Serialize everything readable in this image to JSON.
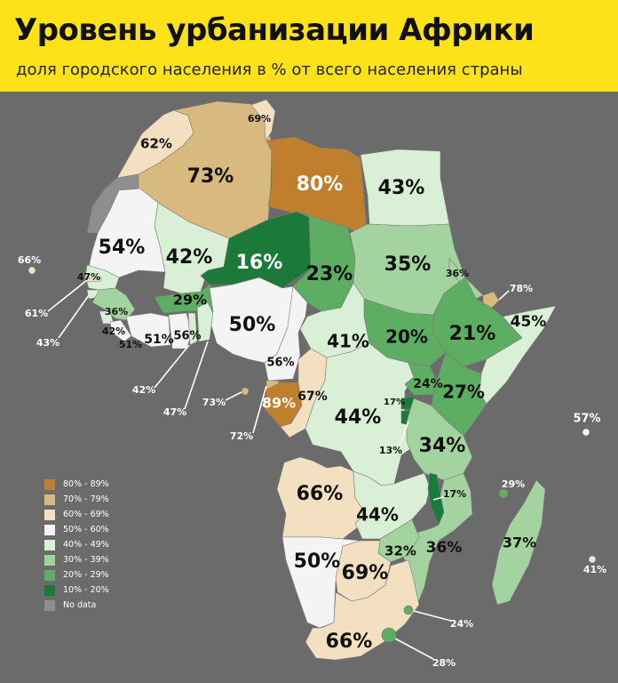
{
  "title": "Уровень урбанизации Африки",
  "subtitle": "доля городского населения в % от всего населения страны",
  "colors": {
    "background": "#6b6b6b",
    "header": "#fde21a",
    "80-89": "#c07f2d",
    "70-79": "#d8b97f",
    "60-69": "#f2e0c0",
    "50-60": "#f4f4f4",
    "40-49": "#d9efd6",
    "30-39": "#a3d39e",
    "20-29": "#5dad63",
    "10-20": "#1b7a3a",
    "no_data": "#8e8e8e"
  },
  "legend": [
    {
      "label": "80% - 89%",
      "color_key": "80-89"
    },
    {
      "label": "70% - 79%",
      "color_key": "70-79"
    },
    {
      "label": "60% - 69%",
      "color_key": "60-69"
    },
    {
      "label": "50% - 60%",
      "color_key": "50-60"
    },
    {
      "label": "40% - 49%",
      "color_key": "40-49"
    },
    {
      "label": "30% - 39%",
      "color_key": "30-39"
    },
    {
      "label": "20% - 29%",
      "color_key": "20-29"
    },
    {
      "label": "10% - 20%",
      "color_key": "10-20"
    },
    {
      "label": "No data",
      "color_key": "no_data"
    }
  ],
  "regions": [
    {
      "id": "morocco",
      "label": "62%",
      "color_key": "60-69"
    },
    {
      "id": "western-sahara",
      "label": "",
      "color_key": "no_data"
    },
    {
      "id": "algeria",
      "label": "73%",
      "color_key": "70-79"
    },
    {
      "id": "tunisia",
      "label": "69%",
      "color_key": "60-69"
    },
    {
      "id": "libya",
      "label": "80%",
      "color_key": "80-89"
    },
    {
      "id": "egypt",
      "label": "43%",
      "color_key": "40-49"
    },
    {
      "id": "mauritania",
      "label": "54%",
      "color_key": "50-60"
    },
    {
      "id": "mali",
      "label": "42%",
      "color_key": "40-49"
    },
    {
      "id": "niger",
      "label": "16%",
      "color_key": "10-20"
    },
    {
      "id": "chad",
      "label": "23%",
      "color_key": "20-29"
    },
    {
      "id": "sudan",
      "label": "35%",
      "color_key": "30-39"
    },
    {
      "id": "eritrea",
      "label": "36%",
      "color_key": "30-39"
    },
    {
      "id": "djibouti",
      "label": "78%",
      "color_key": "70-79"
    },
    {
      "id": "ethiopia",
      "label": "21%",
      "color_key": "20-29"
    },
    {
      "id": "somalia",
      "label": "45%",
      "color_key": "40-49"
    },
    {
      "id": "south-sudan",
      "label": "20%",
      "color_key": "20-29"
    },
    {
      "id": "car",
      "label": "41%",
      "color_key": "40-49"
    },
    {
      "id": "senegal",
      "label": "47%",
      "color_key": "40-49"
    },
    {
      "id": "gambia",
      "label": "61%",
      "color_key": "60-69"
    },
    {
      "id": "guinea-bissau",
      "label": "43%",
      "color_key": "40-49"
    },
    {
      "id": "guinea",
      "label": "36%",
      "color_key": "30-39"
    },
    {
      "id": "sierra-leone",
      "label": "42%",
      "color_key": "40-49"
    },
    {
      "id": "liberia",
      "label": "51%",
      "color_key": "50-60"
    },
    {
      "id": "ivory-coast",
      "label": "51%",
      "color_key": "50-60"
    },
    {
      "id": "burkina-faso",
      "label": "29%",
      "color_key": "20-29"
    },
    {
      "id": "ghana",
      "label": "56%",
      "color_key": "50-60"
    },
    {
      "id": "togo",
      "label": "42%",
      "color_key": "40-49"
    },
    {
      "id": "benin",
      "label": "47%",
      "color_key": "40-49"
    },
    {
      "id": "nigeria",
      "label": "50%",
      "color_key": "50-60"
    },
    {
      "id": "cameroon",
      "label": "56%",
      "color_key": "50-60"
    },
    {
      "id": "equatorial-guinea",
      "label": "72%",
      "color_key": "70-79"
    },
    {
      "id": "sao-tome",
      "label": "73%",
      "color_key": "70-79"
    },
    {
      "id": "gabon",
      "label": "89%",
      "color_key": "80-89"
    },
    {
      "id": "congo",
      "label": "67%",
      "color_key": "60-69"
    },
    {
      "id": "drc",
      "label": "44%",
      "color_key": "40-49"
    },
    {
      "id": "uganda",
      "label": "24%",
      "color_key": "20-29"
    },
    {
      "id": "kenya",
      "label": "27%",
      "color_key": "20-29"
    },
    {
      "id": "rwanda",
      "label": "17%",
      "color_key": "10-20"
    },
    {
      "id": "burundi",
      "label": "13%",
      "color_key": "10-20"
    },
    {
      "id": "tanzania",
      "label": "34%",
      "color_key": "30-39"
    },
    {
      "id": "angola",
      "label": "66%",
      "color_key": "60-69"
    },
    {
      "id": "zambia",
      "label": "44%",
      "color_key": "40-49"
    },
    {
      "id": "malawi",
      "label": "17%",
      "color_key": "10-20"
    },
    {
      "id": "mozambique",
      "label": "36%",
      "color_key": "30-39"
    },
    {
      "id": "zimbabwe",
      "label": "32%",
      "color_key": "30-39"
    },
    {
      "id": "namibia",
      "label": "50%",
      "color_key": "50-60"
    },
    {
      "id": "botswana",
      "label": "69%",
      "color_key": "60-69"
    },
    {
      "id": "south-africa",
      "label": "66%",
      "color_key": "60-69"
    },
    {
      "id": "eswatini",
      "label": "24%",
      "color_key": "20-29"
    },
    {
      "id": "lesotho",
      "label": "28%",
      "color_key": "20-29"
    },
    {
      "id": "madagascar",
      "label": "37%",
      "color_key": "30-39"
    },
    {
      "id": "comoros",
      "label": "29%",
      "color_key": "20-29"
    },
    {
      "id": "seychelles",
      "label": "57%",
      "color_key": "50-60"
    },
    {
      "id": "mauritius",
      "label": "41%",
      "color_key": "40-49"
    },
    {
      "id": "cape-verde",
      "label": "66%",
      "color_key": "60-69"
    }
  ]
}
